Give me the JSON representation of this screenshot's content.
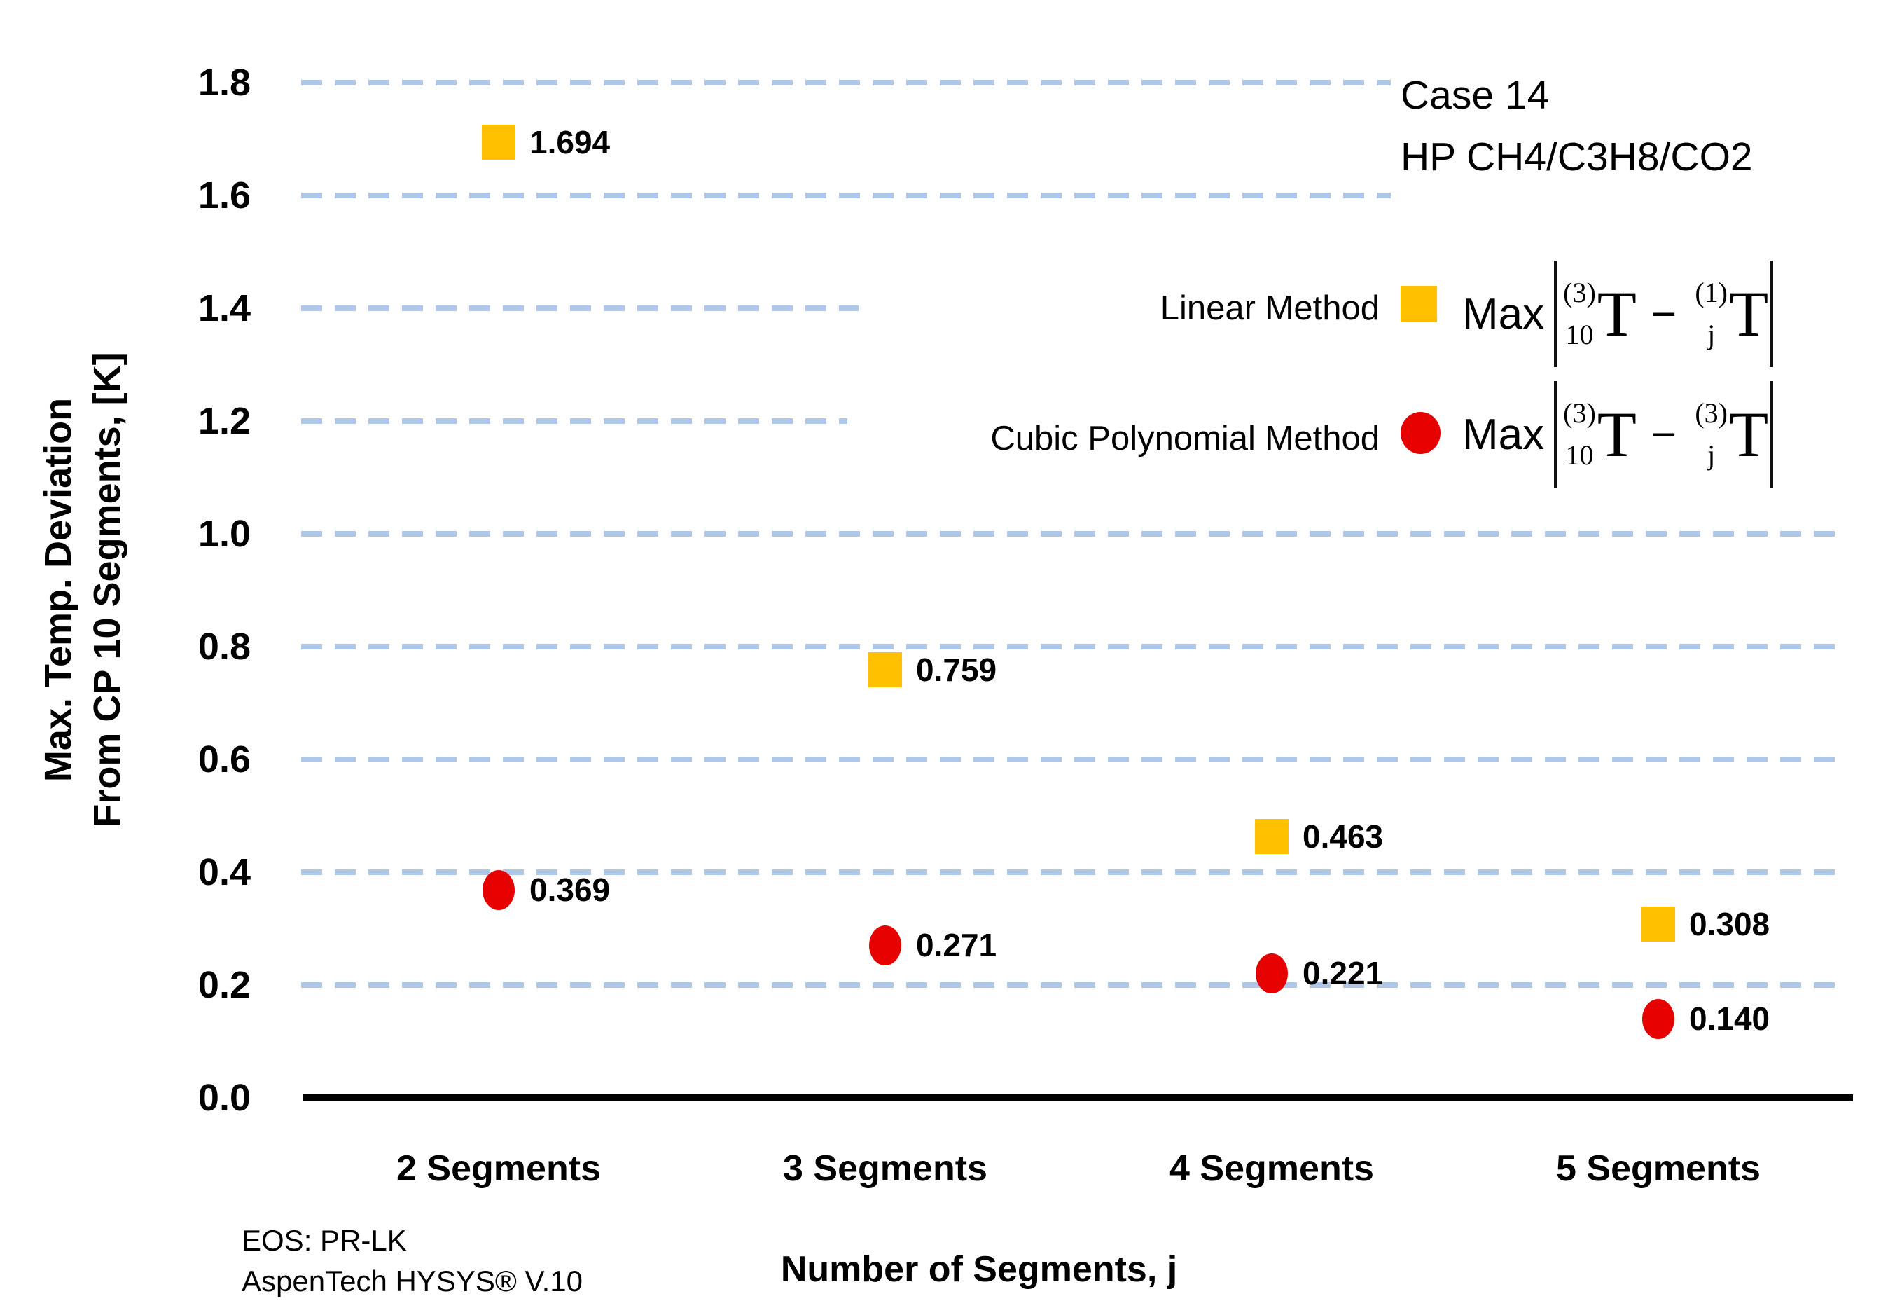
{
  "title_note": {
    "line1": "Case 14",
    "line2": "HP CH4/C3H8/CO2"
  },
  "y_axis": {
    "title_line1": "Max. Temp. Deviation",
    "title_line2": "From CP 10 Segments, [K]",
    "ticks": [
      "0.0",
      "0.2",
      "0.4",
      "0.6",
      "0.8",
      "1.0",
      "1.2",
      "1.4",
      "1.6",
      "1.8"
    ]
  },
  "x_axis": {
    "title": "Number of Segments, j",
    "categories": [
      "2 Segments",
      "3 Segments",
      "4 Segments",
      "5 Segments"
    ]
  },
  "legend": {
    "items": [
      {
        "label": "Linear Method",
        "marker": "square",
        "color": "#FFC000",
        "formula": {
          "func": "Max",
          "sup1": "(3)",
          "sub1": "10",
          "sym1": "T",
          "op": "−",
          "sup2": "(1)",
          "sub2": "j",
          "sym2": "T"
        }
      },
      {
        "label": "Cubic Polynomial Method",
        "marker": "circle",
        "color": "#E60000",
        "formula": {
          "func": "Max",
          "sup1": "(3)",
          "sub1": "10",
          "sym1": "T",
          "op": "−",
          "sup2": "(3)",
          "sub2": "j",
          "sym2": "T"
        }
      }
    ]
  },
  "footnote": {
    "line1": "EOS: PR-LK",
    "line2": "AspenTech HYSYS® V.10"
  },
  "colors": {
    "grid": "#AFC7E8",
    "axis": "#000000",
    "linear": "#FFC000",
    "cubic": "#E60000"
  },
  "chart_data": {
    "type": "scatter",
    "categories": [
      "2 Segments",
      "3 Segments",
      "4 Segments",
      "5 Segments"
    ],
    "series": [
      {
        "name": "Linear Method",
        "marker": "square",
        "color": "#FFC000",
        "values": [
          1.694,
          0.759,
          0.463,
          0.308
        ],
        "labels": [
          "1.694",
          "0.759",
          "0.463",
          "0.308"
        ]
      },
      {
        "name": "Cubic Polynomial Method",
        "marker": "circle",
        "color": "#E60000",
        "values": [
          0.369,
          0.271,
          0.221,
          0.14
        ],
        "labels": [
          "0.369",
          "0.271",
          "0.221",
          "0.140"
        ]
      }
    ],
    "title": "Case 14 HP CH4/C3H8/CO2",
    "xlabel": "Number of Segments, j",
    "ylabel": "Max. Temp. Deviation From CP 10 Segments, [K]",
    "ylim": [
      0.0,
      1.8
    ],
    "ytick_step": 0.2,
    "grid": "horizontal-dashed",
    "legend_position": "upper-right",
    "annotations": [
      "EOS: PR-LK",
      "AspenTech HYSYS® V.10"
    ]
  }
}
